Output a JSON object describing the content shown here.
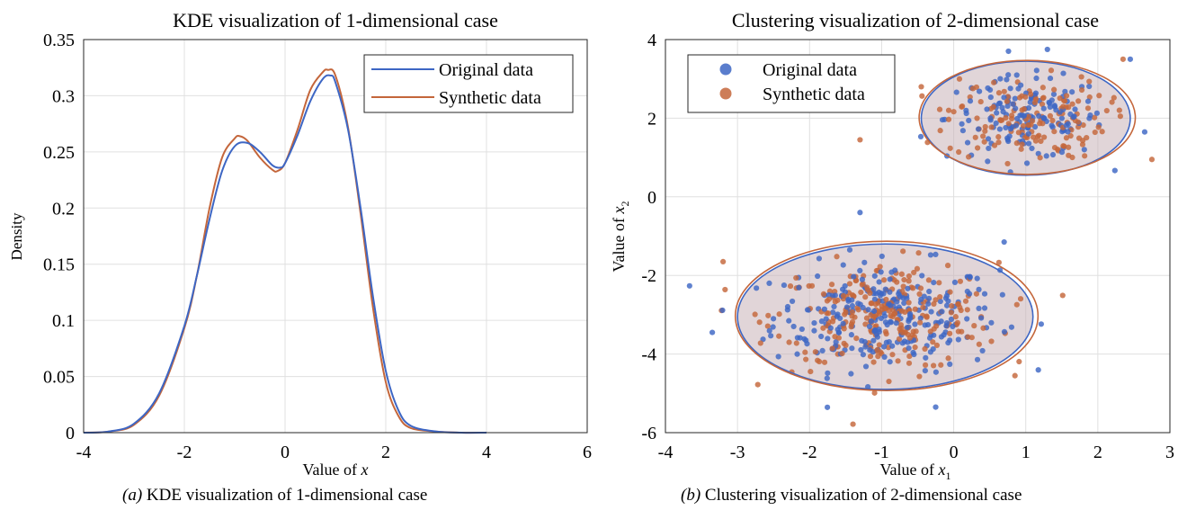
{
  "colors": {
    "original": "#3d66c4",
    "synthetic": "#c4663b",
    "overlap_fill": "#c9b3b8",
    "grid": "#e0e0e0"
  },
  "captions": [
    {
      "tag": "(a)",
      "text": "KDE visualization of 1-dimensional case"
    },
    {
      "tag": "(b)",
      "text": "Clustering visualization of 2-dimensional case"
    }
  ],
  "chart_data": [
    {
      "type": "line",
      "title": "KDE visualization of 1-dimensional case",
      "xlabel": "Value of x",
      "ylabel": "Density",
      "xlim": [
        -4,
        6
      ],
      "ylim": [
        0,
        0.35
      ],
      "xticks": [
        -4,
        -2,
        0,
        2,
        4,
        6
      ],
      "yticks": [
        0,
        0.05,
        0.1,
        0.15,
        0.2,
        0.25,
        0.3,
        0.35
      ],
      "ytick_labels": [
        "0",
        "0.05",
        "0.1",
        "0.15",
        "0.2",
        "0.25",
        "0.3",
        "0.35"
      ],
      "grid": true,
      "legend_position": "top-right",
      "series": [
        {
          "name": "Original data",
          "color": "#3d66c4",
          "x": [
            -4,
            -3.5,
            -3,
            -2.5,
            -2,
            -1.75,
            -1.5,
            -1.25,
            -1,
            -0.75,
            -0.5,
            -0.25,
            -0.1,
            0,
            0.25,
            0.5,
            0.75,
            0.9,
            1,
            1.25,
            1.5,
            1.75,
            2,
            2.25,
            2.5,
            3,
            3.5,
            4
          ],
          "y": [
            0,
            0.001,
            0.008,
            0.035,
            0.095,
            0.14,
            0.19,
            0.233,
            0.255,
            0.258,
            0.25,
            0.238,
            0.236,
            0.24,
            0.265,
            0.295,
            0.315,
            0.318,
            0.312,
            0.27,
            0.2,
            0.12,
            0.055,
            0.02,
            0.006,
            0.001,
            0,
            0
          ]
        },
        {
          "name": "Synthetic data",
          "color": "#c4663b",
          "x": [
            -4,
            -3.5,
            -3,
            -2.5,
            -2,
            -1.75,
            -1.5,
            -1.25,
            -1,
            -0.9,
            -0.75,
            -0.5,
            -0.25,
            -0.15,
            0,
            0.25,
            0.5,
            0.75,
            0.85,
            1,
            1.25,
            1.5,
            1.75,
            2,
            2.25,
            2.5,
            3,
            3.5,
            4
          ],
          "y": [
            0,
            0.001,
            0.007,
            0.033,
            0.093,
            0.14,
            0.2,
            0.245,
            0.262,
            0.264,
            0.26,
            0.245,
            0.234,
            0.233,
            0.24,
            0.27,
            0.305,
            0.321,
            0.323,
            0.318,
            0.272,
            0.195,
            0.11,
            0.045,
            0.015,
            0.004,
            0.001,
            0,
            0
          ]
        }
      ]
    },
    {
      "type": "scatter",
      "title": "Clustering visualization of 2-dimensional case",
      "xlabel": "Value of x1",
      "ylabel": "Value of x2",
      "xlim": [
        -4,
        3
      ],
      "ylim": [
        -6,
        4
      ],
      "xticks": [
        -4,
        -3,
        -2,
        -1,
        0,
        1,
        2,
        3
      ],
      "yticks": [
        -6,
        -4,
        -2,
        0,
        2,
        4
      ],
      "grid": true,
      "legend_position": "top-left",
      "series": [
        {
          "name": "Original data",
          "color": "#3d66c4",
          "n_points": 420
        },
        {
          "name": "Synthetic data",
          "color": "#c4663b",
          "n_points": 420
        }
      ],
      "clusters": [
        {
          "center": [
            1.0,
            2.0
          ],
          "original_ellipse": {
            "rx": 1.45,
            "ry": 1.45
          },
          "synthetic_ellipse": {
            "rx": 1.5,
            "ry": 1.45
          }
        },
        {
          "center": [
            -0.95,
            -3.05
          ],
          "original_ellipse": {
            "rx": 2.05,
            "ry": 1.85
          },
          "synthetic_ellipse": {
            "rx": 2.1,
            "ry": 1.9
          }
        }
      ],
      "outliers": [
        {
          "series": "Original data",
          "points": [
            [
              -1.3,
              -0.4
            ],
            [
              0.7,
              -1.15
            ],
            [
              2.45,
              3.5
            ],
            [
              2.65,
              1.65
            ],
            [
              1.3,
              3.75
            ],
            [
              -0.25,
              -5.35
            ],
            [
              -3.35,
              -3.45
            ]
          ]
        },
        {
          "series": "Synthetic data",
          "points": [
            [
              -1.3,
              1.45
            ],
            [
              -0.45,
              2.8
            ],
            [
              2.75,
              0.95
            ],
            [
              2.35,
              3.5
            ],
            [
              -3.2,
              -1.65
            ],
            [
              0.85,
              -4.55
            ]
          ]
        }
      ]
    }
  ]
}
